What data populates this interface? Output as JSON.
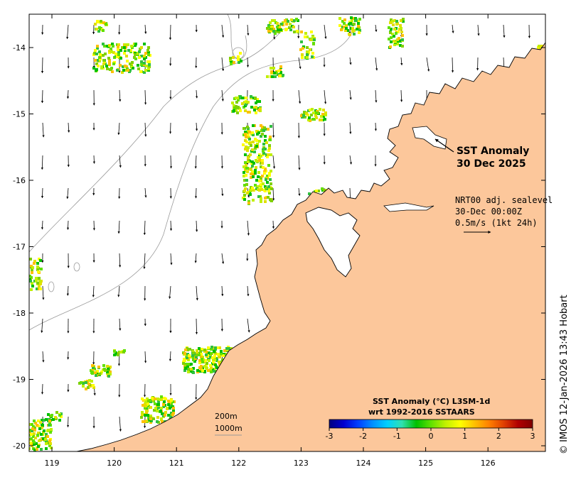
{
  "map": {
    "title_line1": "SST Anomaly",
    "title_line2": "30 Dec 2025",
    "current_note": {
      "line1": "NRT00 adj. sealevel",
      "line2": "30-Dec 00:00Z",
      "line3": "0.5m/s (1kt 24h)"
    },
    "contour_labels": [
      "200m",
      "1000m"
    ],
    "credit": "© IMOS 12-Jan-2026 13:43 Hobart",
    "x_ticks": [
      "119",
      "120",
      "121",
      "122",
      "123",
      "124",
      "125",
      "126"
    ],
    "y_ticks": [
      "-14",
      "-15",
      "-16",
      "-17",
      "-18",
      "-19",
      "-20"
    ],
    "colors": {
      "land": "#fcc79b",
      "ocean": "#ffffff",
      "coastline": "#000000",
      "bathymetry": "#9a9a9a"
    }
  },
  "colorbar": {
    "title_line1": "SST Anomaly (°C) L3SM-1d",
    "title_line2": "wrt 1992-2016 SSTAARS",
    "ticks": [
      "-3",
      "-2",
      "-1",
      "0",
      "1",
      "2",
      "3"
    ],
    "colors": [
      "#000080",
      "#0000d0",
      "#0040ff",
      "#0090ff",
      "#00d0ff",
      "#30e0b0",
      "#00c000",
      "#60e000",
      "#c0f000",
      "#ffff00",
      "#ffc000",
      "#ff8000",
      "#e04000",
      "#b00000",
      "#800000"
    ]
  }
}
